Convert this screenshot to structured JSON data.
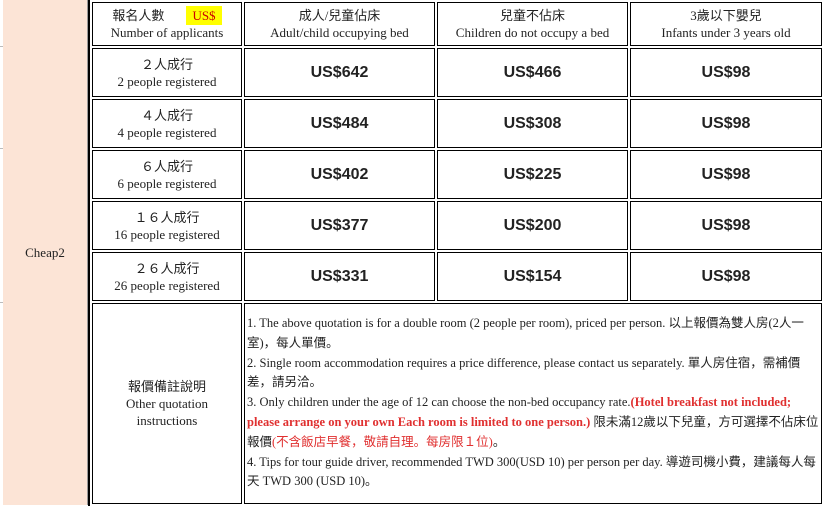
{
  "group_label": "Cheap2",
  "header": {
    "col0_zh": "報名人數",
    "currency": "US$",
    "col0_en": "Number of applicants",
    "col1_zh": "成人/兒童佔床",
    "col1_en": "Adult/child occupying bed",
    "col2_zh": "兒童不佔床",
    "col2_en": "Children do not occupy a bed",
    "col3_zh": "3歲以下嬰兒",
    "col3_en": "Infants under 3 years old"
  },
  "rows": [
    {
      "zh": "２人成行",
      "en": "2 people registered",
      "adult": "US$642",
      "child": "US$466",
      "infant": "US$98"
    },
    {
      "zh": "４人成行",
      "en": "4 people registered",
      "adult": "US$484",
      "child": "US$308",
      "infant": "US$98"
    },
    {
      "zh": "６人成行",
      "en": "6 people registered",
      "adult": "US$402",
      "child": "US$225",
      "infant": "US$98"
    },
    {
      "zh": "１６人成行",
      "en": "16 people registered",
      "adult": "US$377",
      "child": "US$200",
      "infant": "US$98"
    },
    {
      "zh": "２６人成行",
      "en": "26 people registered",
      "adult": "US$331",
      "child": "US$154",
      "infant": "US$98"
    }
  ],
  "notes": {
    "label_zh": "報價備註說明",
    "label_en1": "Other quotation",
    "label_en2": "instructions",
    "n1": "1. The above quotation is for a double room (2 people per room), priced per person. 以上報價為雙人房(2人一室)，每人單價。",
    "n2": "2. Single room accommodation requires a price difference, please contact us separately. 單人房住宿，需補價差，請另洽。",
    "n3a": "3. Only children under the age of 12 can choose the non-bed occupancy rate.",
    "n3b": "(Hotel breakfast not included; please arrange on your own Each room is limited to one person.)",
    "n3c": " 限未滿12歲以下兒童，方可選擇不佔床位報價",
    "n3d": "(不含飯店早餐，敬請自理。每房限１位)",
    "n3e": "。",
    "n4": "4. Tips for tour guide driver, recommended TWD 300(USD 10) per person per day. 導遊司機小費，建議每人每天 TWD 300 (USD 10)。"
  },
  "colors": {
    "group_bg": "#fce4d6",
    "currency_bg": "#ffff00",
    "note_red": "#e03030"
  }
}
